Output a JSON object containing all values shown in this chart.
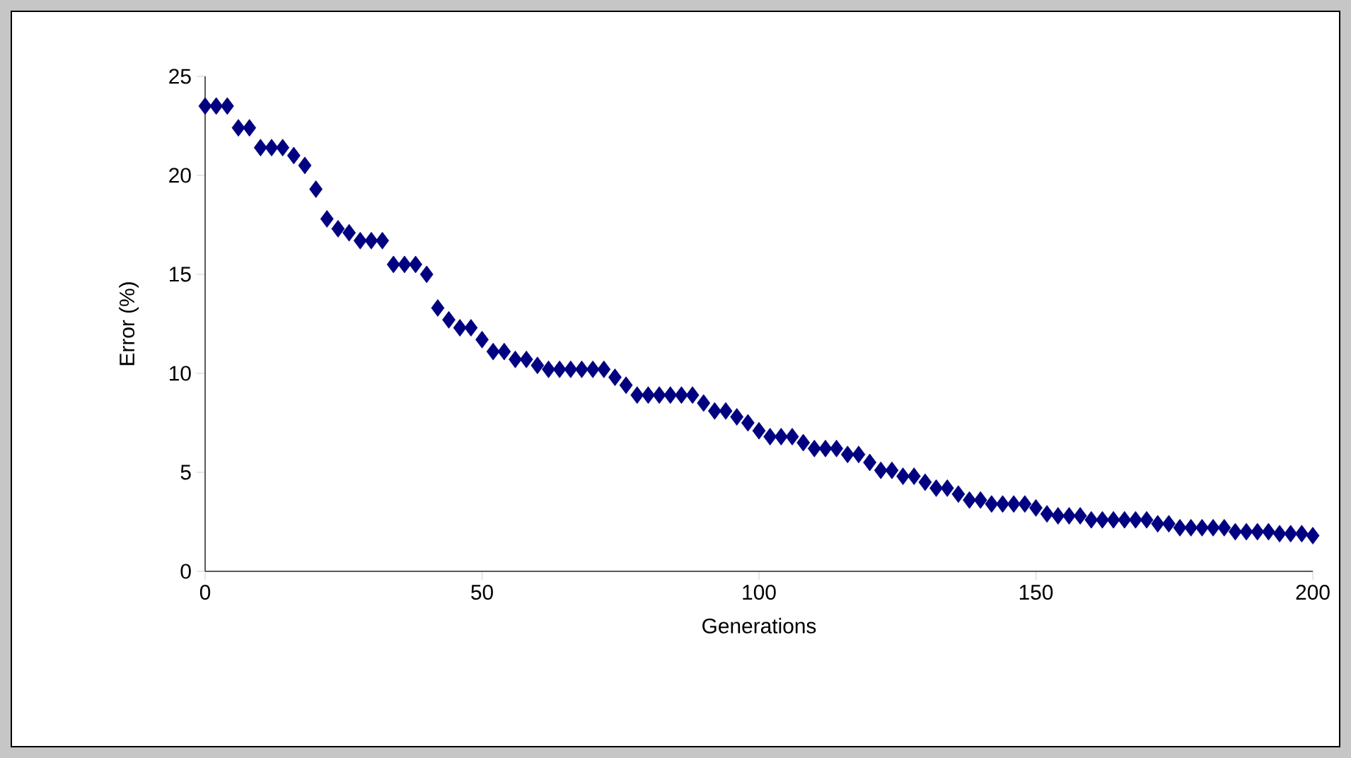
{
  "chart_data": {
    "type": "scatter",
    "xlabel": "Generations",
    "ylabel": "Error (%)",
    "xlim": [
      0,
      200
    ],
    "xticks": [
      0,
      50,
      100,
      150,
      200
    ],
    "ylim": [
      0,
      25
    ],
    "yticks": [
      0,
      5,
      10,
      15,
      20,
      25
    ],
    "marker": "diamond",
    "series": [
      {
        "color": "#000080",
        "x": [
          0,
          2,
          4,
          6,
          8,
          10,
          12,
          14,
          16,
          18,
          20,
          22,
          24,
          26,
          28,
          30,
          32,
          34,
          36,
          38,
          40,
          42,
          44,
          46,
          48,
          50,
          52,
          54,
          56,
          58,
          60,
          62,
          64,
          66,
          68,
          70,
          72,
          74,
          76,
          78,
          80,
          82,
          84,
          86,
          88,
          90,
          92,
          94,
          96,
          98,
          100,
          102,
          104,
          106,
          108,
          110,
          112,
          114,
          116,
          118,
          120,
          122,
          124,
          126,
          128,
          130,
          132,
          134,
          136,
          138,
          140,
          142,
          144,
          146,
          148,
          150,
          152,
          154,
          156,
          158,
          160,
          162,
          164,
          166,
          168,
          170,
          172,
          174,
          176,
          178,
          180,
          182,
          184,
          186,
          188,
          190,
          192,
          194,
          196,
          198,
          200
        ],
        "values": [
          23.5,
          23.5,
          23.5,
          22.4,
          22.4,
          21.4,
          21.4,
          21.4,
          21,
          20.5,
          19.3,
          17.8,
          17.3,
          17.1,
          16.7,
          16.7,
          16.7,
          15.5,
          15.5,
          15.5,
          15,
          13.3,
          12.7,
          12.3,
          12.3,
          11.7,
          11.1,
          11.1,
          10.7,
          10.7,
          10.4,
          10.2,
          10.2,
          10.2,
          10.2,
          10.2,
          10.2,
          9.8,
          9.4,
          8.9,
          8.9,
          8.9,
          8.9,
          8.9,
          8.9,
          8.5,
          8.1,
          8.1,
          7.8,
          7.5,
          7.1,
          6.8,
          6.8,
          6.8,
          6.5,
          6.2,
          6.2,
          6.2,
          5.9,
          5.9,
          5.5,
          5.1,
          5.1,
          4.8,
          4.8,
          4.5,
          4.2,
          4.2,
          3.9,
          3.6,
          3.6,
          3.4,
          3.4,
          3.4,
          3.4,
          3.2,
          2.9,
          2.8,
          2.8,
          2.8,
          2.6,
          2.6,
          2.6,
          2.6,
          2.6,
          2.6,
          2.4,
          2.4,
          2.2,
          2.2,
          2.2,
          2.2,
          2.2,
          2.0,
          2.0,
          2.0,
          2.0,
          1.9,
          1.9,
          1.9,
          1.8
        ]
      }
    ]
  }
}
